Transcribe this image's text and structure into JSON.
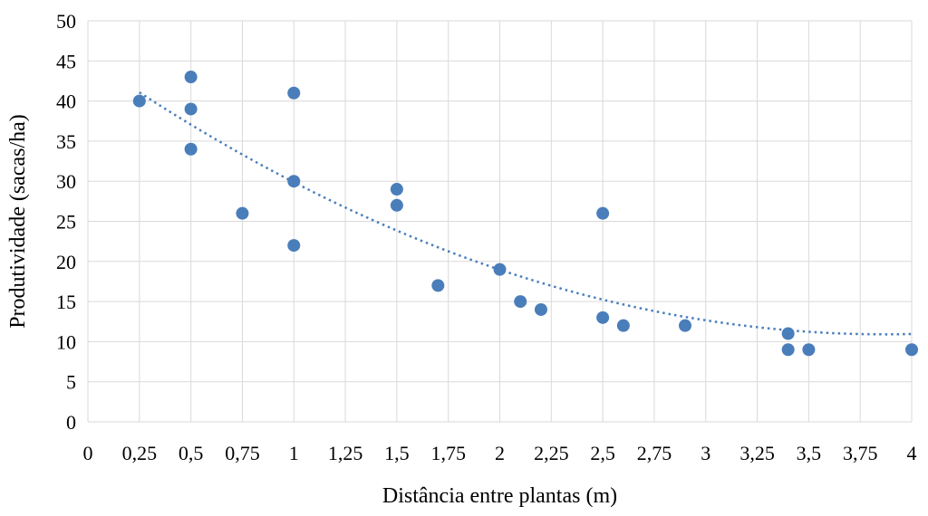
{
  "chart_data": {
    "type": "scatter",
    "title": "",
    "xlabel": "Distância entre plantas (m)",
    "ylabel": "Produtividade (sacas/ha)",
    "xlim": [
      0,
      4
    ],
    "ylim": [
      0,
      50
    ],
    "x_ticks": [
      0,
      0.25,
      0.5,
      0.75,
      1,
      1.25,
      1.5,
      1.75,
      2,
      2.25,
      2.5,
      2.75,
      3,
      3.25,
      3.5,
      3.75,
      4
    ],
    "x_tick_labels": [
      "0",
      "0,25",
      "0,5",
      "0,75",
      "1",
      "1,25",
      "1,5",
      "1,75",
      "2",
      "2,25",
      "2,5",
      "2,75",
      "3",
      "3,25",
      "3,5",
      "3,75",
      "4"
    ],
    "y_ticks": [
      0,
      5,
      10,
      15,
      20,
      25,
      30,
      35,
      40,
      45,
      50
    ],
    "y_tick_labels": [
      "0",
      "5",
      "10",
      "15",
      "20",
      "25",
      "30",
      "35",
      "40",
      "45",
      "50"
    ],
    "grid": true,
    "marker_color": "#4a7ebb",
    "trendline_color": "#4a7ebb",
    "points": [
      {
        "x": 0.25,
        "y": 40
      },
      {
        "x": 0.5,
        "y": 43
      },
      {
        "x": 0.5,
        "y": 39
      },
      {
        "x": 0.5,
        "y": 34
      },
      {
        "x": 0.75,
        "y": 26
      },
      {
        "x": 1,
        "y": 41
      },
      {
        "x": 1,
        "y": 30
      },
      {
        "x": 1,
        "y": 22
      },
      {
        "x": 1.5,
        "y": 29
      },
      {
        "x": 1.5,
        "y": 27
      },
      {
        "x": 1.7,
        "y": 17
      },
      {
        "x": 2,
        "y": 19
      },
      {
        "x": 2.1,
        "y": 15
      },
      {
        "x": 2.2,
        "y": 14
      },
      {
        "x": 2.5,
        "y": 26
      },
      {
        "x": 2.5,
        "y": 13
      },
      {
        "x": 2.6,
        "y": 12
      },
      {
        "x": 2.9,
        "y": 12
      },
      {
        "x": 3.4,
        "y": 11
      },
      {
        "x": 3.4,
        "y": 9
      },
      {
        "x": 3.5,
        "y": 9
      },
      {
        "x": 4,
        "y": 9
      }
    ],
    "trendline": {
      "type": "polynomial",
      "x_range": [
        0.25,
        4
      ],
      "coefficients": [
        45.39,
        -17.81,
        2.3
      ]
    }
  }
}
